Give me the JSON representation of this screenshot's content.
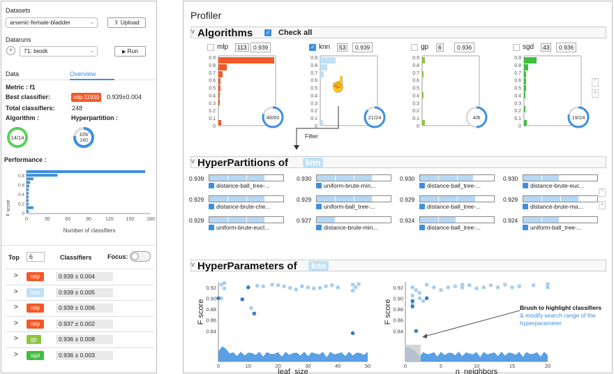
{
  "left": {
    "datasets_label": "Datasets",
    "dataset_value": "arsenic-female-bladder",
    "upload_label": "Upload",
    "dataruns_label": "Dataruns",
    "datarun_value": "71: bestk",
    "run_label": "Run",
    "tab_data": "Data",
    "tab_overview": "Overview",
    "metric": "Metric : f1",
    "best_label": "Best classifier:",
    "best_tag": "mlp-11939",
    "best_value": "0.939±0.004",
    "total_label": "Total classifiers:",
    "total_value": "248",
    "algorithm_label": "Algorithm :",
    "algorithm_ring": "14/14",
    "hyperpartition_label": "Hyperpartition :",
    "hp_ring_top": "109/",
    "hp_ring_bottom": "140",
    "performance_label": "Performance :",
    "top_label": "Top",
    "top_value": "6",
    "classifiers_label": "Classifiers",
    "focus_label": "Focus:",
    "rows": [
      {
        "tag": "mlp",
        "color": "#f05a28",
        "value": "0.939 ± 0.004"
      },
      {
        "tag": "knn",
        "color": "#bfe0f7",
        "value": "0.939 ± 0.005"
      },
      {
        "tag": "mlp",
        "color": "#f05a28",
        "value": "0.939 ± 0.006"
      },
      {
        "tag": "mlp",
        "color": "#f05a28",
        "value": "0.937 ± 0.002"
      },
      {
        "tag": "gp",
        "color": "#8cc63f",
        "value": "0.936 ± 0.008"
      },
      {
        "tag": "sgd",
        "color": "#3fbf3f",
        "value": "0.936 ± 0.003"
      }
    ],
    "chevron": ">"
  },
  "perf_chart": {
    "ylabel": "F score",
    "xlabel": "Number of classifiers",
    "xticks": [
      "0",
      "30",
      "60",
      "90",
      "120",
      "150",
      "180"
    ],
    "yticks": [
      "0.8",
      "0.6",
      "0.4",
      "0.2",
      "0"
    ],
    "bars": [
      172,
      45,
      10,
      5,
      4,
      3,
      3,
      3,
      3,
      3,
      10,
      3
    ]
  },
  "profiler": {
    "title": "Profiler",
    "algorithms_title": "Algorithms",
    "check_all": "Check all",
    "filter_label": "Filter",
    "algos": [
      {
        "name": "mlp",
        "count": "113",
        "best": "0.939",
        "ring": "48/60",
        "checked": false,
        "color": "#f05a28",
        "frac": 0.8
      },
      {
        "name": "knn",
        "count": "53",
        "best": "0.939",
        "ring": "21/24",
        "checked": true,
        "color": "#bfe0f7",
        "frac": 0.875
      },
      {
        "name": "gp",
        "count": "6",
        "best": "0.936",
        "ring": "4/8",
        "checked": false,
        "color": "#8cc63f",
        "frac": 0.5
      },
      {
        "name": "sgd",
        "count": "43",
        "best": "0.936",
        "ring": "19/24",
        "checked": false,
        "color": "#3fbf3f",
        "frac": 0.79
      }
    ],
    "yticks": [
      "0.9",
      "0.8",
      "0.7",
      "0.6",
      "0.5",
      "0.4",
      "0.3",
      "0.2",
      "0.1",
      "0"
    ],
    "hyperpartitions_title": "HyperPartitions of",
    "hp_algo": "knn",
    "hyperpartitions": [
      {
        "score": "0.939",
        "label": "distance-ball_tree-...",
        "fill": 0.75
      },
      {
        "score": "0.930",
        "label": "uniform-brute-min...",
        "fill": 0.75
      },
      {
        "score": "0.930",
        "label": "distance-ball_tree-...",
        "fill": 0.72
      },
      {
        "score": "0.930",
        "label": "distance-brute-euc...",
        "fill": 0.48
      },
      {
        "score": "0.929",
        "label": "distance-brute-che...",
        "fill": 0.75
      },
      {
        "score": "0.929",
        "label": "uniform-ball_tree-...",
        "fill": 0.75
      },
      {
        "score": "0.929",
        "label": "distance-ball_tree-...",
        "fill": 0.75
      },
      {
        "score": "0.929",
        "label": "distance-brute-ma...",
        "fill": 0.75
      },
      {
        "score": "0.929",
        "label": "uniform-brute-eucl...",
        "fill": 0.75
      },
      {
        "score": "0.927",
        "label": "distance-brute-min...",
        "fill": 0.25
      },
      {
        "score": "0.924",
        "label": "distance-ball_tree-...",
        "fill": 0.48
      },
      {
        "score": "0.924",
        "label": "uniform-ball_tree-...",
        "fill": 0.48
      }
    ],
    "hyperparameters_title": "HyperParameters of",
    "hparam_algo": "knn",
    "annotation_line1": "Brush to highlight classifiers",
    "annotation_line2": "& modify search range of the",
    "annotation_line3": "hyperparameter"
  },
  "chart_data": [
    {
      "type": "scatter",
      "xlabel": "leaf_size",
      "ylabel": "F score",
      "xlim": [
        0,
        50
      ],
      "ylim": [
        0.82,
        0.93
      ],
      "xticks": [
        "0",
        "10",
        "20",
        "30",
        "40",
        "50"
      ],
      "yticks": [
        "0.92",
        "0.90",
        "0.88",
        "0.86",
        "0.84"
      ],
      "points": [
        [
          1,
          0.925
        ],
        [
          1,
          0.9
        ],
        [
          2,
          0.928
        ],
        [
          2,
          0.918
        ],
        [
          8,
          0.898
        ],
        [
          10,
          0.92
        ],
        [
          11,
          0.882
        ],
        [
          12,
          0.872
        ],
        [
          13,
          0.923
        ],
        [
          15,
          0.922
        ],
        [
          18,
          0.925
        ],
        [
          20,
          0.924
        ],
        [
          22,
          0.922
        ],
        [
          24,
          0.919
        ],
        [
          26,
          0.916
        ],
        [
          28,
          0.922
        ],
        [
          30,
          0.92
        ],
        [
          32,
          0.918
        ],
        [
          34,
          0.919
        ],
        [
          36,
          0.922
        ],
        [
          38,
          0.924
        ],
        [
          40,
          0.92
        ],
        [
          45,
          0.925
        ],
        [
          45,
          0.914
        ],
        [
          46,
          0.92
        ],
        [
          47,
          0.926
        ],
        [
          45,
          0.836
        ]
      ],
      "dark_points": [
        [
          0,
          0.9
        ],
        [
          8,
          0.898
        ],
        [
          12,
          0.872
        ],
        [
          10,
          0.92
        ],
        [
          45,
          0.836
        ]
      ]
    },
    {
      "type": "scatter",
      "xlabel": "n_neighbors",
      "ylabel": "F score",
      "xlim": [
        0,
        20
      ],
      "ylim": [
        0.82,
        0.93
      ],
      "xticks": [
        "0",
        "5",
        "10",
        "15",
        "20"
      ],
      "yticks": [
        "0.92",
        "0.90",
        "0.88",
        "0.86",
        "0.84"
      ],
      "points": [
        [
          1,
          0.92
        ],
        [
          1,
          0.905
        ],
        [
          1,
          0.89
        ],
        [
          1.5,
          0.915
        ],
        [
          2,
          0.91
        ],
        [
          2,
          0.9
        ],
        [
          2.5,
          0.895
        ],
        [
          3,
          0.925
        ],
        [
          3,
          0.9
        ],
        [
          4,
          0.92
        ],
        [
          5,
          0.915
        ],
        [
          6,
          0.92
        ],
        [
          7,
          0.922
        ],
        [
          8,
          0.925
        ],
        [
          8,
          0.92
        ],
        [
          9,
          0.924
        ],
        [
          10,
          0.918
        ],
        [
          11,
          0.92
        ],
        [
          12,
          0.924
        ],
        [
          13,
          0.92
        ],
        [
          14,
          0.925
        ],
        [
          15,
          0.92
        ],
        [
          16,
          0.922
        ],
        [
          18,
          0.924
        ],
        [
          20,
          0.92
        ],
        [
          20,
          0.926
        ]
      ],
      "dark_points": [
        [
          1,
          0.895
        ],
        [
          1,
          0.885
        ],
        [
          3,
          0.9
        ],
        [
          1.5,
          0.84
        ]
      ]
    }
  ]
}
